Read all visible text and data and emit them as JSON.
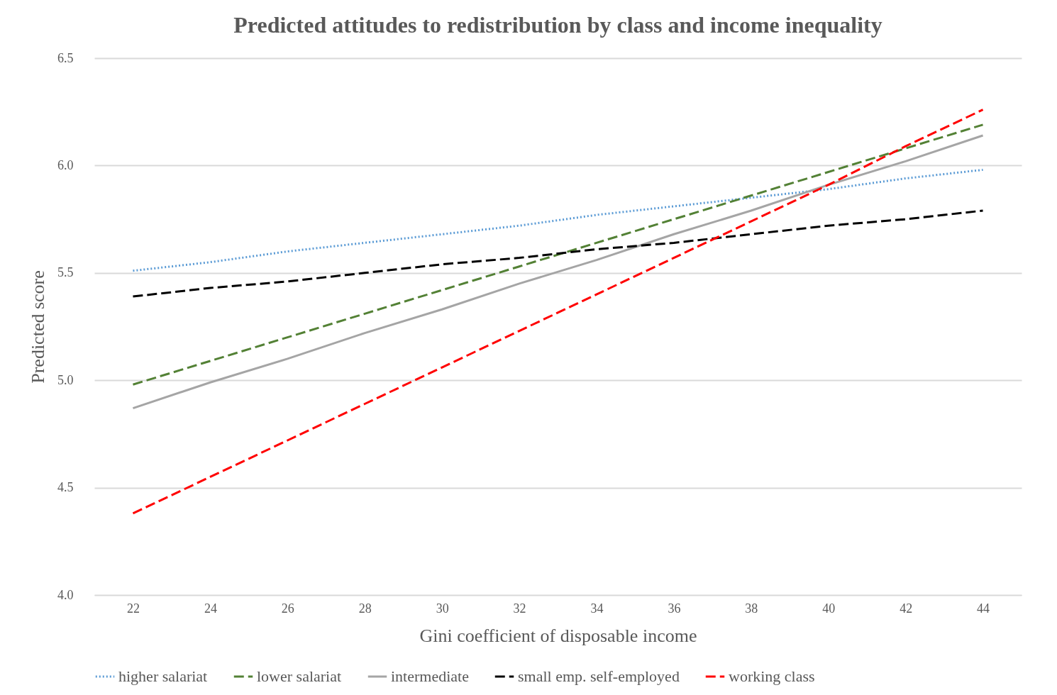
{
  "chart_data": {
    "type": "line",
    "title": "Predicted attitudes to redistribution by class and income inequality",
    "xlabel": "Gini coefficient of disposable income",
    "ylabel": "Predicted score",
    "categories": [
      "22",
      "24",
      "26",
      "28",
      "30",
      "32",
      "34",
      "36",
      "38",
      "40",
      "42",
      "44"
    ],
    "ylim": [
      4.0,
      6.5
    ],
    "yticks": [
      {
        "value": 4,
        "label": "4.0"
      },
      {
        "value": 4.5,
        "label": "4.5"
      },
      {
        "value": 5,
        "label": "5.0"
      },
      {
        "value": 5.5,
        "label": "5.5"
      },
      {
        "value": 6,
        "label": "6.0"
      },
      {
        "value": 6.5,
        "label": "6.5"
      }
    ],
    "grid": "y",
    "legend": "bottom",
    "series": [
      {
        "name": "higher salariat",
        "color": "#5b9bd5",
        "line_style": "dotted",
        "values": [
          5.51,
          5.55,
          5.6,
          5.64,
          5.68,
          5.72,
          5.77,
          5.81,
          5.85,
          5.89,
          5.94,
          5.98
        ]
      },
      {
        "name": "lower salariat",
        "color": "#538135",
        "line_style": "dashed",
        "values": [
          4.98,
          5.09,
          5.2,
          5.31,
          5.42,
          5.53,
          5.64,
          5.75,
          5.86,
          5.97,
          6.08,
          6.19
        ]
      },
      {
        "name": "intermediate",
        "color": "#a5a5a5",
        "line_style": "solid",
        "values": [
          4.87,
          4.99,
          5.1,
          5.22,
          5.33,
          5.45,
          5.56,
          5.68,
          5.79,
          5.91,
          6.02,
          6.14
        ]
      },
      {
        "name": "small emp. self-employed",
        "color": "#000000",
        "line_style": "dashed",
        "values": [
          5.39,
          5.43,
          5.46,
          5.5,
          5.54,
          5.57,
          5.61,
          5.64,
          5.68,
          5.72,
          5.75,
          5.79
        ]
      },
      {
        "name": "working class",
        "color": "#ff0000",
        "line_style": "dashed",
        "values": [
          4.38,
          4.55,
          4.72,
          4.89,
          5.06,
          5.23,
          5.4,
          5.57,
          5.74,
          5.91,
          6.09,
          6.26
        ]
      }
    ]
  }
}
